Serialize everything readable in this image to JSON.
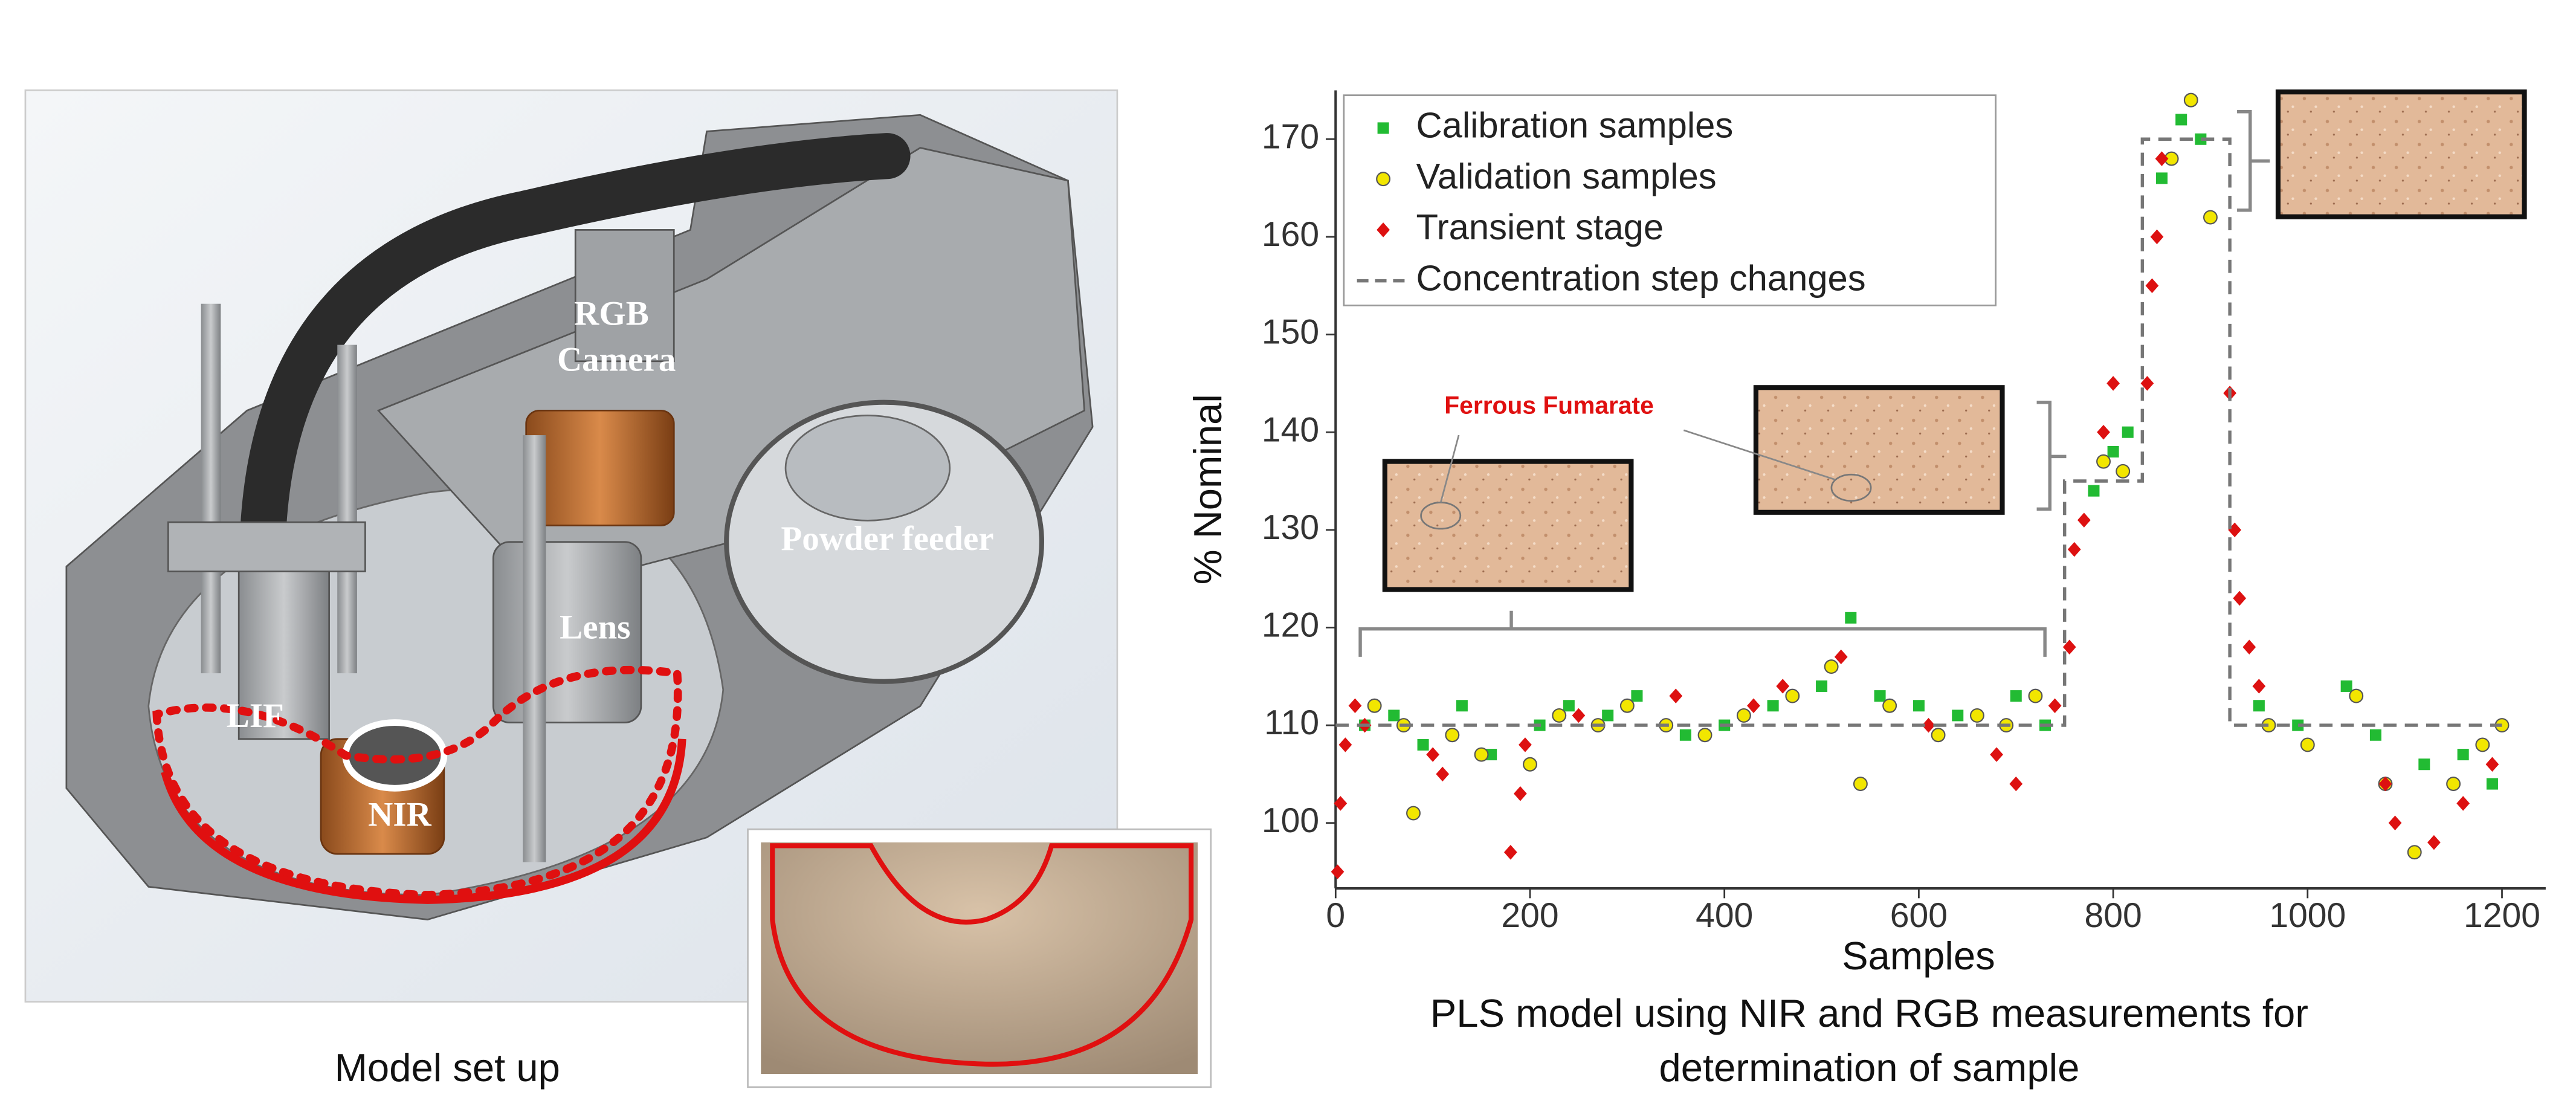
{
  "panel": {
    "left_caption": "Model set up",
    "image_labels": [
      "RGB",
      "Camera",
      "LIF",
      "NIR",
      "Lens",
      "Powder feeder"
    ]
  },
  "chart_data": {
    "type": "scatter",
    "xlabel": "Samples",
    "ylabel": "% Nominal",
    "caption": [
      "PLS model using NIR and RGB measurements for",
      "determination of sample"
    ],
    "annotation": "Ferrous Fumarate",
    "xlim": [
      0,
      1245
    ],
    "ylim": [
      93.3,
      175
    ],
    "xticks": [
      0,
      200,
      400,
      600,
      800,
      1000,
      1200
    ],
    "yticks": [
      100,
      110,
      120,
      130,
      140,
      150,
      160,
      170
    ],
    "legend": "upper-left",
    "series": [
      {
        "name": "Calibration samples",
        "color": "#22bb33",
        "marker": "square",
        "x": [
          30,
          60,
          90,
          130,
          160,
          210,
          240,
          280,
          310,
          360,
          400,
          450,
          500,
          530,
          560,
          600,
          640,
          700,
          730,
          780,
          800,
          815,
          850,
          870,
          890,
          950,
          990,
          1040,
          1070,
          1120,
          1160,
          1190
        ],
        "values": [
          110,
          111,
          108,
          112,
          107,
          110,
          112,
          111,
          113,
          109,
          110,
          112,
          114,
          121,
          113,
          112,
          111,
          113,
          110,
          134,
          138,
          140,
          166,
          172,
          170,
          112,
          110,
          114,
          109,
          106,
          107,
          104
        ]
      },
      {
        "name": "Validation samples",
        "color": "#f2e600",
        "marker": "circle",
        "x": [
          40,
          70,
          80,
          120,
          150,
          200,
          230,
          270,
          300,
          340,
          380,
          420,
          470,
          510,
          540,
          570,
          620,
          660,
          690,
          720,
          790,
          810,
          860,
          880,
          900,
          960,
          1000,
          1050,
          1080,
          1110,
          1150,
          1180,
          1200
        ],
        "values": [
          112,
          110,
          101,
          109,
          107,
          106,
          111,
          110,
          112,
          110,
          109,
          111,
          113,
          116,
          104,
          112,
          109,
          111,
          110,
          113,
          137,
          136,
          168,
          174,
          162,
          110,
          108,
          113,
          104,
          97,
          104,
          108,
          110
        ]
      },
      {
        "name": "Transient stage",
        "color": "#dd1111",
        "marker": "diamond",
        "x": [
          2,
          5,
          10,
          20,
          30,
          100,
          110,
          180,
          190,
          195,
          250,
          350,
          430,
          460,
          520,
          610,
          680,
          700,
          740,
          755,
          760,
          770,
          790,
          800,
          835,
          840,
          845,
          850,
          920,
          925,
          930,
          940,
          950,
          1080,
          1090,
          1130,
          1160,
          1190
        ],
        "values": [
          95,
          102,
          108,
          112,
          110,
          107,
          105,
          97,
          103,
          108,
          111,
          113,
          112,
          114,
          117,
          110,
          107,
          104,
          112,
          118,
          128,
          131,
          140,
          145,
          145,
          155,
          160,
          168,
          144,
          130,
          123,
          118,
          114,
          104,
          100,
          98,
          102,
          106
        ]
      },
      {
        "name": "Concentration step changes",
        "color": "#777777",
        "marker": "dashed-line",
        "x": [
          0,
          750,
          750,
          830,
          830,
          920,
          920,
          1200
        ],
        "values": [
          110,
          110,
          135,
          135,
          170,
          170,
          110,
          110
        ]
      }
    ]
  }
}
